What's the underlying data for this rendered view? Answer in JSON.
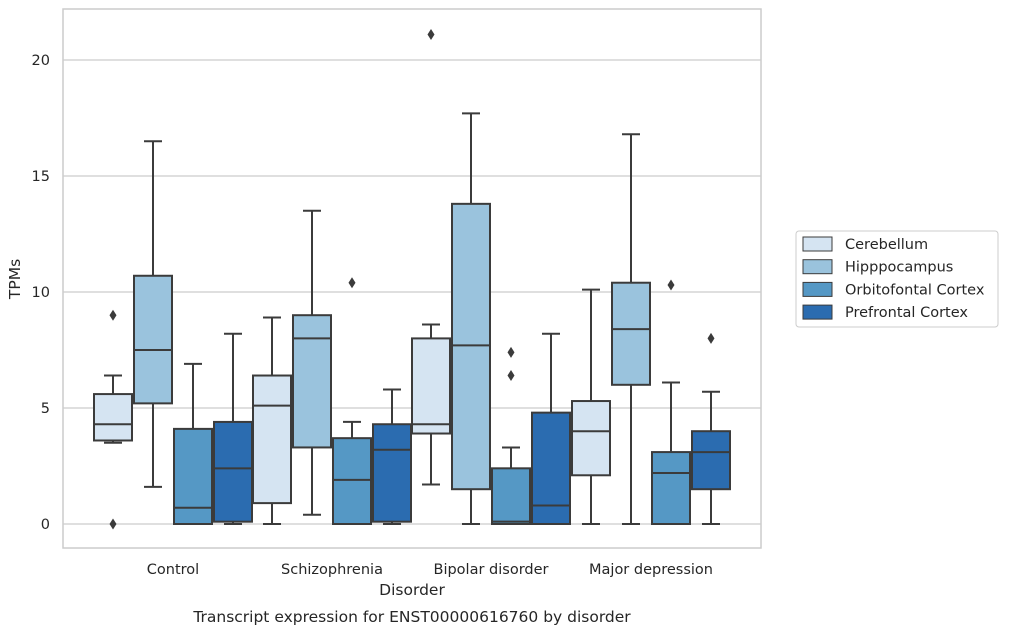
{
  "chart_data": {
    "type": "boxplot",
    "caption": "Transcript expression for ENST00000616760 by disorder",
    "xlabel": "Disorder",
    "ylabel": "TPMs",
    "ylim": [
      -1,
      22
    ],
    "yticks": [
      0,
      5,
      10,
      15,
      20
    ],
    "grid": "horizontal",
    "legend_position": "right",
    "categories": [
      "Control",
      "Schizophrenia",
      "Bipolar disorder",
      "Major depression"
    ],
    "series": [
      {
        "name": "Cerebellum",
        "color": "#d5e4f2",
        "boxes": [
          {
            "whisker_low": 3.5,
            "q1": 3.6,
            "median": 4.3,
            "q3": 5.6,
            "whisker_high": 6.4,
            "outliers": [
              9.0,
              0.0
            ]
          },
          {
            "whisker_low": 0.0,
            "q1": 0.9,
            "median": 5.1,
            "q3": 6.4,
            "whisker_high": 8.9,
            "outliers": []
          },
          {
            "whisker_low": 1.7,
            "q1": 3.9,
            "median": 4.3,
            "q3": 8.0,
            "whisker_high": 8.6,
            "outliers": [
              21.1
            ]
          },
          {
            "whisker_low": 0.0,
            "q1": 2.1,
            "median": 4.0,
            "q3": 5.3,
            "whisker_high": 10.1,
            "outliers": []
          }
        ]
      },
      {
        "name": "Hipppocampus",
        "color": "#9ac3dd",
        "boxes": [
          {
            "whisker_low": 1.6,
            "q1": 5.2,
            "median": 7.5,
            "q3": 10.7,
            "whisker_high": 16.5,
            "outliers": []
          },
          {
            "whisker_low": 0.4,
            "q1": 3.3,
            "median": 8.0,
            "q3": 9.0,
            "whisker_high": 13.5,
            "outliers": []
          },
          {
            "whisker_low": 0.0,
            "q1": 1.5,
            "median": 7.7,
            "q3": 13.8,
            "whisker_high": 17.7,
            "outliers": []
          },
          {
            "whisker_low": 0.0,
            "q1": 6.0,
            "median": 8.4,
            "q3": 10.4,
            "whisker_high": 16.8,
            "outliers": []
          }
        ]
      },
      {
        "name": "Orbitofontal Cortex",
        "color": "#5598c5",
        "boxes": [
          {
            "whisker_low": 0.0,
            "q1": 0.0,
            "median": 0.7,
            "q3": 4.1,
            "whisker_high": 6.9,
            "outliers": []
          },
          {
            "whisker_low": 0.0,
            "q1": 0.0,
            "median": 1.9,
            "q3": 3.7,
            "whisker_high": 4.4,
            "outliers": [
              10.4
            ]
          },
          {
            "whisker_low": 0.0,
            "q1": 0.0,
            "median": 0.1,
            "q3": 2.4,
            "whisker_high": 3.3,
            "outliers": [
              7.4,
              6.4
            ]
          },
          {
            "whisker_low": 0.0,
            "q1": 0.0,
            "median": 2.2,
            "q3": 3.1,
            "whisker_high": 6.1,
            "outliers": [
              10.3
            ]
          }
        ]
      },
      {
        "name": "Prefrontal Cortex",
        "color": "#2b6cb0",
        "boxes": [
          {
            "whisker_low": 0.0,
            "q1": 0.1,
            "median": 2.4,
            "q3": 4.4,
            "whisker_high": 8.2,
            "outliers": []
          },
          {
            "whisker_low": 0.0,
            "q1": 0.1,
            "median": 3.2,
            "q3": 4.3,
            "whisker_high": 5.8,
            "outliers": []
          },
          {
            "whisker_low": 0.0,
            "q1": 0.0,
            "median": 0.8,
            "q3": 4.8,
            "whisker_high": 8.2,
            "outliers": []
          },
          {
            "whisker_low": 0.0,
            "q1": 1.5,
            "median": 3.1,
            "q3": 4.0,
            "whisker_high": 5.7,
            "outliers": [
              8.0
            ]
          }
        ]
      }
    ]
  }
}
